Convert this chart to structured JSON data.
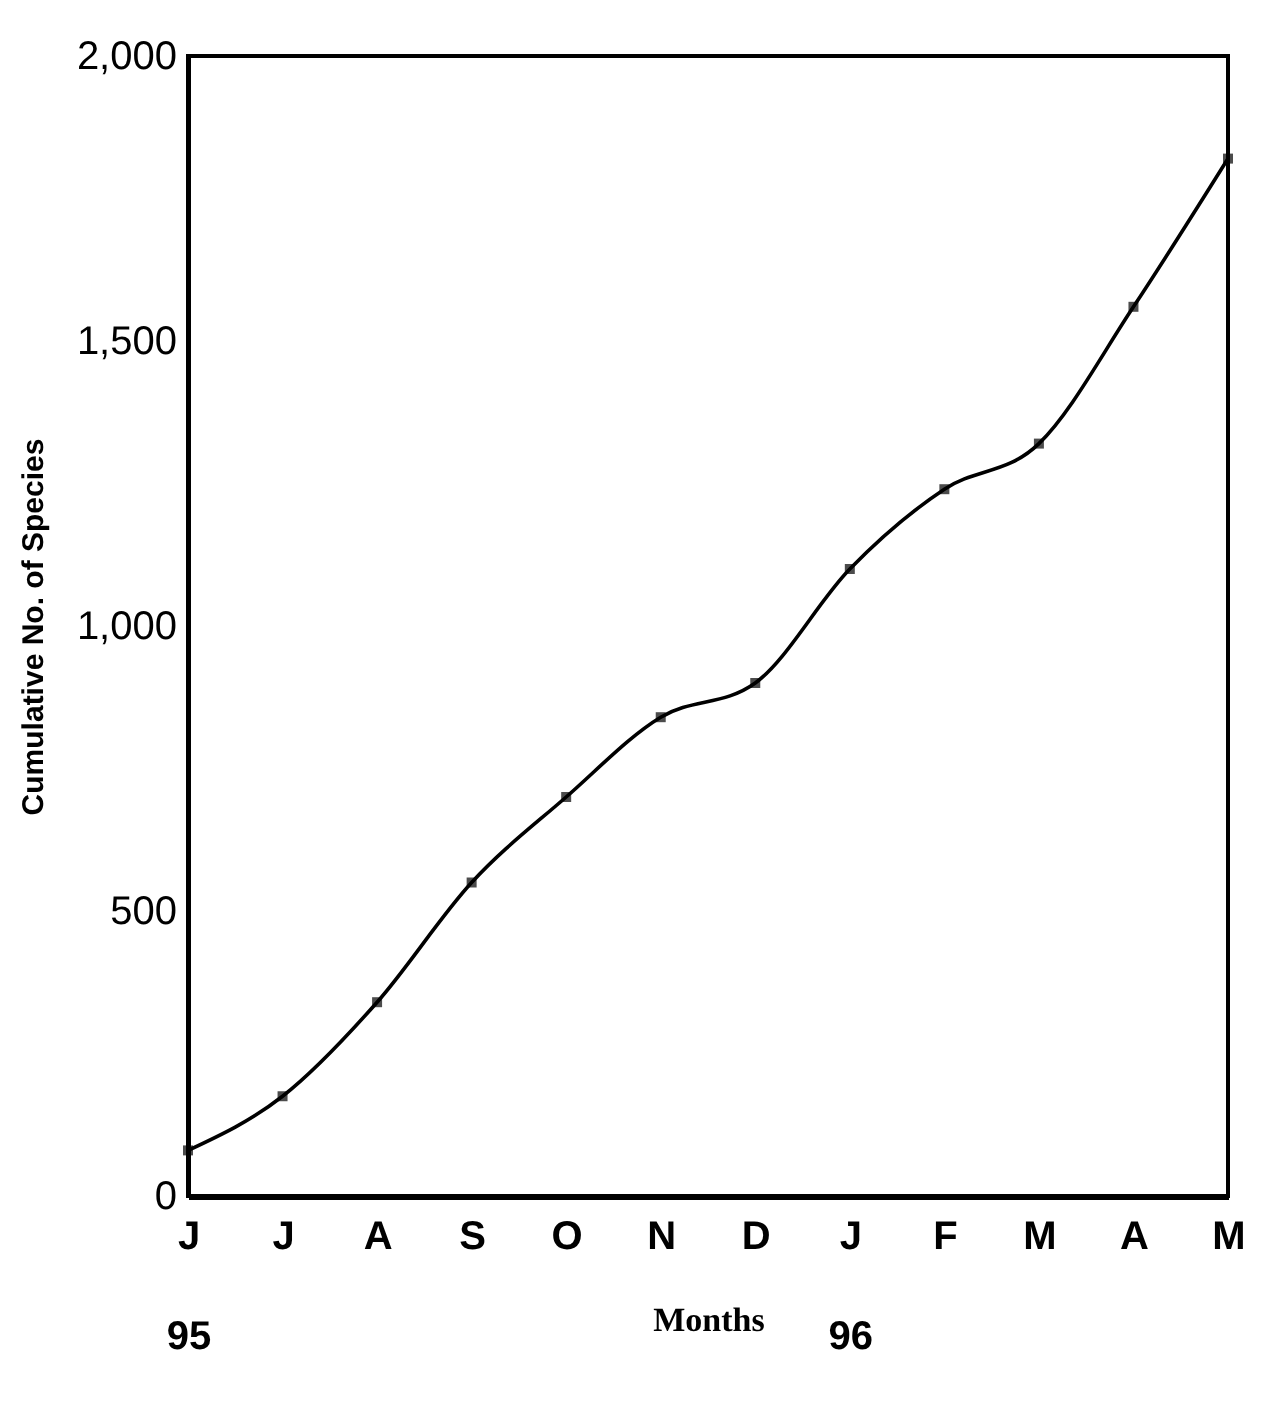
{
  "chart_data": {
    "type": "line",
    "xlabel": "Months",
    "ylabel": "Cumulative No. of Species",
    "categories": [
      "J\n95",
      "J",
      "A",
      "S",
      "O",
      "N",
      "D",
      "J\n96",
      "F",
      "M",
      "A",
      "M"
    ],
    "series": [
      {
        "color": "#000000",
        "values": [
          80,
          175,
          340,
          550,
          700,
          840,
          900,
          1100,
          1240,
          1320,
          1560,
          1820
        ]
      }
    ],
    "ylim": [
      0,
      2000
    ],
    "yticks": [
      0,
      500,
      {
        "value": 1000,
        "label": "1,000"
      },
      {
        "value": 1500,
        "label": "1,500"
      },
      {
        "value": 2000,
        "label": "2,000"
      }
    ],
    "grid": false,
    "marker": "square",
    "line_style": "solid"
  }
}
